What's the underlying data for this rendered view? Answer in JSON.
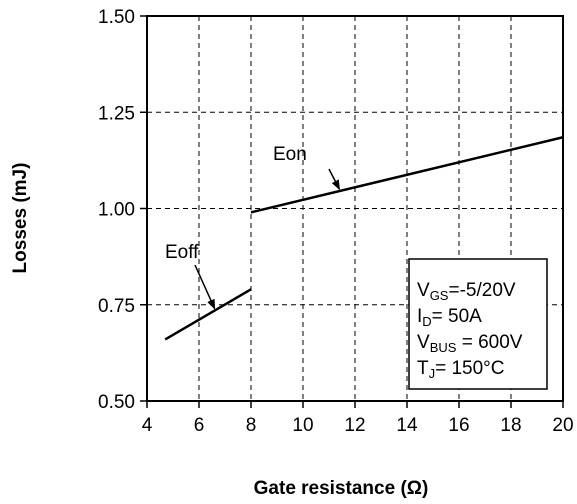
{
  "chart_data": {
    "type": "line",
    "xlabel": "Gate resistance (Ω)",
    "ylabel": "Losses  (mJ)",
    "xlim": [
      4,
      20
    ],
    "ylim": [
      0.5,
      1.5
    ],
    "xticks": [
      "4",
      "6",
      "8",
      "10",
      "12",
      "14",
      "16",
      "18",
      "20"
    ],
    "yticks": [
      "0.50",
      "0.75",
      "1.00",
      "1.25",
      "1.50"
    ],
    "grid": true,
    "series": [
      {
        "name": "Eon",
        "x": [
          8,
          20
        ],
        "y": [
          0.99,
          1.185
        ]
      },
      {
        "name": "Eoff",
        "x": [
          4.7,
          8
        ],
        "y": [
          0.66,
          0.79
        ]
      }
    ],
    "annotations": [
      {
        "text": "Eon",
        "arrow_to": [
          11.4,
          1.05
        ]
      },
      {
        "text": "Eoff",
        "arrow_to": [
          6.6,
          0.74
        ]
      }
    ],
    "conditions": [
      {
        "main": "V",
        "sub": "GS",
        "rest": "=-5/20V"
      },
      {
        "main": "I",
        "sub": "D",
        "rest": "= 50A"
      },
      {
        "main": "V",
        "sub": "BUS",
        "rest": " = 600V"
      },
      {
        "main": "T",
        "sub": "J",
        "rest": "= 150°C"
      }
    ]
  }
}
